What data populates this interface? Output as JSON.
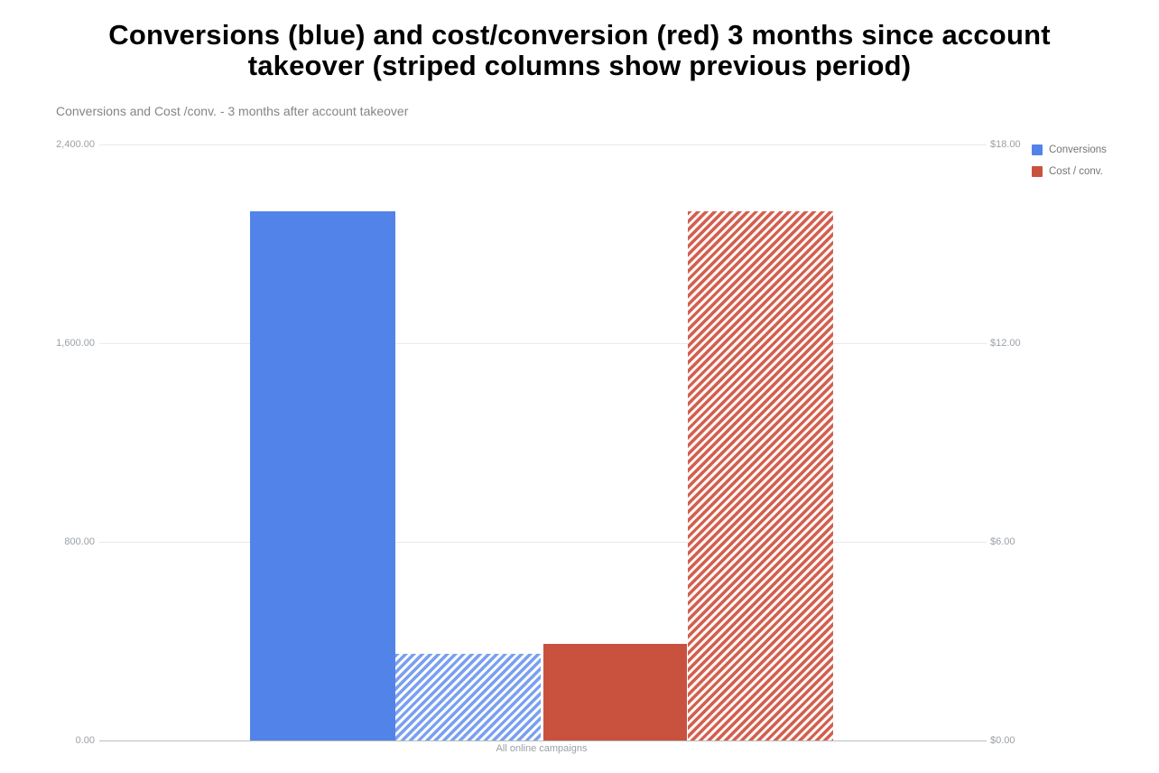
{
  "header": {
    "title_full": "Conversions (blue) and cost/conversion (red) 3 months since account takeover (striped columns show previous period)"
  },
  "chart_data": {
    "type": "bar",
    "title_lines": [
      "Conversions (blue) and cost/conversion (red) 3 months since account",
      "takeover (striped columns show previous period)"
    ],
    "subtitle": "Conversions and Cost /conv. - 3 months after account takeover",
    "categories": [
      "All online campaigns"
    ],
    "series": [
      {
        "name": "Conversions",
        "axis": "left",
        "color": "#5283e8",
        "values": {
          "current": 2130,
          "previous": 350
        },
        "previous_period_style": "striped"
      },
      {
        "name": "Cost / conv.",
        "axis": "right",
        "color": "#c9523f",
        "values": {
          "current": 2.92,
          "previous": 15.98
        },
        "previous_period_style": "striped"
      }
    ],
    "left_axis": {
      "min": 0,
      "max": 2400,
      "tick_values": [
        2400,
        1600,
        800,
        0
      ],
      "tick_labels": [
        "2,400.00",
        "1,600.00",
        "800.00",
        "0.00"
      ]
    },
    "right_axis": {
      "min": 0,
      "max": 18,
      "tick_values": [
        18,
        12,
        6,
        0
      ],
      "tick_labels": [
        "$18.00",
        "$12.00",
        "$6.00",
        "$0.00"
      ]
    },
    "legend": [
      {
        "label": "Conversions",
        "color": "#5283e8"
      },
      {
        "label": "Cost / conv.",
        "color": "#c9523f"
      }
    ],
    "grid": true,
    "legend_position": "top-right"
  }
}
